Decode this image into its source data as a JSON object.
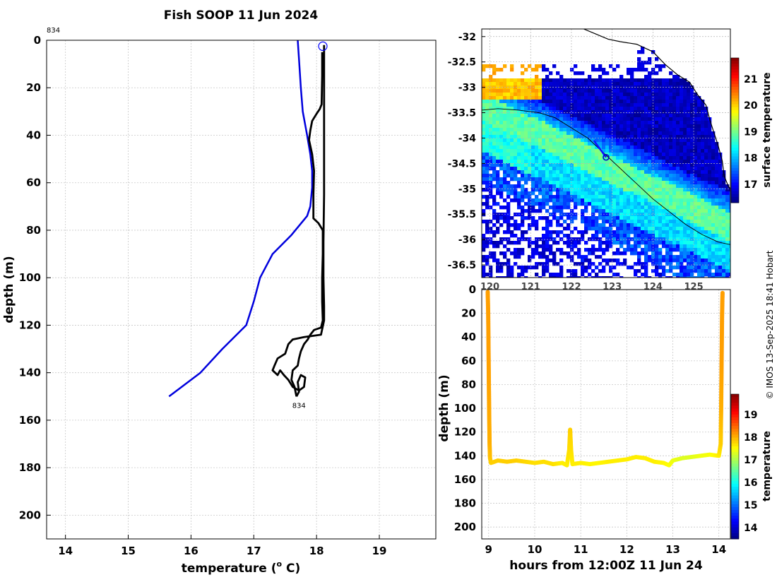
{
  "title": "Fish SOOP 11 Jun 2024",
  "credit": "© IMOS 13-Sep-2025 18:41 Hobart",
  "chart_data": [
    {
      "type": "line",
      "name": "temperature-depth-profile",
      "xlabel_prefix": "temperature (",
      "xlabel_sup": "o",
      "xlabel_suffix": " C)",
      "ylabel": "depth (m)",
      "xlim": [
        13.7,
        19.9
      ],
      "ylim": [
        210,
        0
      ],
      "xticks": [
        14,
        15,
        16,
        17,
        18,
        19
      ],
      "yticks": [
        0,
        20,
        40,
        60,
        80,
        100,
        120,
        140,
        160,
        180,
        200
      ],
      "grid": true,
      "top_label": "834",
      "bottom_label": "834",
      "start_marker": {
        "temp": 18.1,
        "depth": 2.5
      },
      "series": [
        {
          "name": "climatology",
          "color": "#0000dd",
          "points": [
            [
              17.7,
              0
            ],
            [
              17.72,
              8
            ],
            [
              17.75,
              20
            ],
            [
              17.78,
              30
            ],
            [
              17.85,
              40
            ],
            [
              17.9,
              48
            ],
            [
              17.93,
              55
            ],
            [
              17.93,
              62
            ],
            [
              17.9,
              70
            ],
            [
              17.85,
              74
            ],
            [
              17.6,
              82
            ],
            [
              17.3,
              90
            ],
            [
              17.1,
              100
            ],
            [
              17.0,
              110
            ],
            [
              16.88,
              120
            ],
            [
              16.5,
              130
            ],
            [
              16.15,
              140
            ],
            [
              15.65,
              150
            ]
          ]
        },
        {
          "name": "observed-descent",
          "color": "#000000",
          "points": [
            [
              18.12,
              2
            ],
            [
              18.12,
              10
            ],
            [
              18.12,
              25
            ],
            [
              18.12,
              45
            ],
            [
              18.12,
              65
            ],
            [
              18.11,
              85
            ],
            [
              18.11,
              100
            ],
            [
              18.12,
              112
            ],
            [
              18.12,
              118
            ],
            [
              18.07,
              124
            ],
            [
              17.8,
              125
            ],
            [
              17.62,
              126
            ],
            [
              17.55,
              128
            ],
            [
              17.5,
              132
            ],
            [
              17.38,
              134
            ],
            [
              17.33,
              137
            ],
            [
              17.3,
              139
            ],
            [
              17.38,
              141
            ],
            [
              17.42,
              139
            ],
            [
              17.48,
              141
            ],
            [
              17.55,
              143
            ],
            [
              17.62,
              146
            ],
            [
              17.72,
              147.5
            ],
            [
              17.8,
              146
            ],
            [
              17.82,
              142
            ],
            [
              17.75,
              141
            ],
            [
              17.7,
              144
            ],
            [
              17.72,
              148
            ],
            [
              17.68,
              150
            ]
          ]
        },
        {
          "name": "observed-ascent",
          "color": "#000000",
          "points": [
            [
              17.68,
              150
            ],
            [
              17.65,
              146
            ],
            [
              17.6,
              143
            ],
            [
              17.62,
              139
            ],
            [
              17.7,
              137
            ],
            [
              17.72,
              134
            ],
            [
              17.75,
              131
            ],
            [
              17.8,
              128
            ],
            [
              17.86,
              126
            ],
            [
              17.9,
              124
            ],
            [
              17.96,
              122
            ],
            [
              18.07,
              121
            ],
            [
              18.1,
              118
            ],
            [
              18.09,
              110
            ],
            [
              18.09,
              100
            ],
            [
              18.1,
              90
            ],
            [
              18.1,
              80
            ],
            [
              18.03,
              77
            ],
            [
              17.95,
              75
            ],
            [
              17.95,
              65
            ],
            [
              17.96,
              55
            ],
            [
              17.93,
              48
            ],
            [
              17.88,
              42
            ],
            [
              17.9,
              38
            ],
            [
              17.93,
              34
            ],
            [
              18.0,
              31
            ],
            [
              18.05,
              29
            ],
            [
              18.08,
              27
            ],
            [
              18.09,
              15
            ],
            [
              18.09,
              5
            ]
          ]
        }
      ]
    },
    {
      "type": "heatmap",
      "name": "surface-temperature-map",
      "colorbar_label": "surface temperature",
      "clim": [
        16.3,
        21.8
      ],
      "colorbar_ticks": [
        17,
        18,
        19,
        20,
        21
      ],
      "xlim": [
        119.8,
        125.9
      ],
      "ylim": [
        -36.75,
        -31.85
      ],
      "xtick_labels": [
        "120",
        "121",
        "122",
        "123",
        "124",
        "125"
      ],
      "yticks": [
        -32,
        -32.5,
        -33,
        -33.5,
        -34,
        -34.5,
        -35,
        -35.5,
        -36,
        -36.5
      ],
      "grid": true,
      "vessel_position": {
        "lon": 122.85,
        "lat": -34.38
      },
      "vessel_track": [
        [
          122.55,
          -34.05
        ],
        [
          122.85,
          -34.38
        ]
      ],
      "coastline": [
        [
          122.3,
          -31.85
        ],
        [
          122.6,
          -31.95
        ],
        [
          122.9,
          -32.05
        ],
        [
          123.2,
          -32.1
        ],
        [
          123.6,
          -32.15
        ],
        [
          124.0,
          -32.3
        ],
        [
          124.3,
          -32.55
        ],
        [
          124.6,
          -32.75
        ],
        [
          124.9,
          -32.9
        ],
        [
          125.1,
          -33.15
        ],
        [
          125.3,
          -33.35
        ],
        [
          125.4,
          -33.65
        ],
        [
          125.5,
          -33.9
        ],
        [
          125.6,
          -34.15
        ],
        [
          125.7,
          -34.45
        ],
        [
          125.75,
          -34.75
        ],
        [
          125.85,
          -34.95
        ],
        [
          125.9,
          -35.0
        ]
      ],
      "shelf_contour": [
        [
          119.8,
          -33.45
        ],
        [
          120.2,
          -33.42
        ],
        [
          120.7,
          -33.45
        ],
        [
          121.2,
          -33.5
        ],
        [
          121.6,
          -33.6
        ],
        [
          122.0,
          -33.8
        ],
        [
          122.4,
          -34.0
        ],
        [
          122.8,
          -34.3
        ],
        [
          123.2,
          -34.6
        ],
        [
          123.6,
          -34.9
        ],
        [
          124.0,
          -35.2
        ],
        [
          124.4,
          -35.45
        ],
        [
          124.8,
          -35.7
        ],
        [
          125.2,
          -35.9
        ],
        [
          125.6,
          -36.05
        ],
        [
          125.9,
          -36.1
        ]
      ]
    },
    {
      "type": "scatter",
      "name": "depth-time-series",
      "xlabel": "hours from 12:00Z 11 Jun 24",
      "ylabel": "depth (m)",
      "colorbar_label": "temperature",
      "clim": [
        13.5,
        19.9
      ],
      "colorbar_ticks": [
        14,
        15,
        16,
        17,
        18,
        19
      ],
      "xlim": [
        8.85,
        14.25
      ],
      "ylim": [
        210,
        0
      ],
      "xticks": [
        9,
        10,
        11,
        12,
        13,
        14
      ],
      "yticks": [
        0,
        20,
        40,
        60,
        80,
        100,
        120,
        140,
        160,
        180,
        200
      ],
      "grid": true,
      "series": [
        {
          "name": "fish-depth",
          "points": [
            [
              8.98,
              2,
              18.1
            ],
            [
              8.99,
              20,
              18.1
            ],
            [
              9.0,
              60,
              18.1
            ],
            [
              9.01,
              100,
              18.05
            ],
            [
              9.02,
              130,
              18.0
            ],
            [
              9.03,
              142,
              17.9
            ],
            [
              9.05,
              146,
              17.8
            ],
            [
              9.2,
              144,
              17.8
            ],
            [
              9.4,
              145,
              17.8
            ],
            [
              9.6,
              144,
              17.8
            ],
            [
              9.8,
              145,
              17.75
            ],
            [
              10.0,
              146,
              17.7
            ],
            [
              10.2,
              145,
              17.7
            ],
            [
              10.4,
              147,
              17.7
            ],
            [
              10.6,
              146,
              17.6
            ],
            [
              10.7,
              148,
              17.6
            ],
            [
              10.75,
              135,
              17.7
            ],
            [
              10.77,
              118,
              17.8
            ],
            [
              10.79,
              135,
              17.7
            ],
            [
              10.82,
              147,
              17.6
            ],
            [
              11.0,
              146,
              17.6
            ],
            [
              11.2,
              147,
              17.55
            ],
            [
              11.4,
              146,
              17.55
            ],
            [
              11.6,
              145,
              17.6
            ],
            [
              11.8,
              144,
              17.6
            ],
            [
              12.0,
              143,
              17.6
            ],
            [
              12.2,
              141,
              17.6
            ],
            [
              12.4,
              142,
              17.6
            ],
            [
              12.6,
              145,
              17.6
            ],
            [
              12.8,
              146,
              17.55
            ],
            [
              12.92,
              148,
              17.5
            ],
            [
              13.0,
              144,
              17.4
            ],
            [
              13.2,
              142,
              17.3
            ],
            [
              13.4,
              141,
              17.3
            ],
            [
              13.6,
              140,
              17.4
            ],
            [
              13.8,
              139,
              17.45
            ],
            [
              14.0,
              140,
              17.6
            ],
            [
              14.04,
              130,
              17.8
            ],
            [
              14.05,
              100,
              18.0
            ],
            [
              14.06,
              60,
              18.1
            ],
            [
              14.07,
              20,
              18.1
            ],
            [
              14.08,
              2,
              18.1
            ]
          ]
        }
      ]
    }
  ]
}
